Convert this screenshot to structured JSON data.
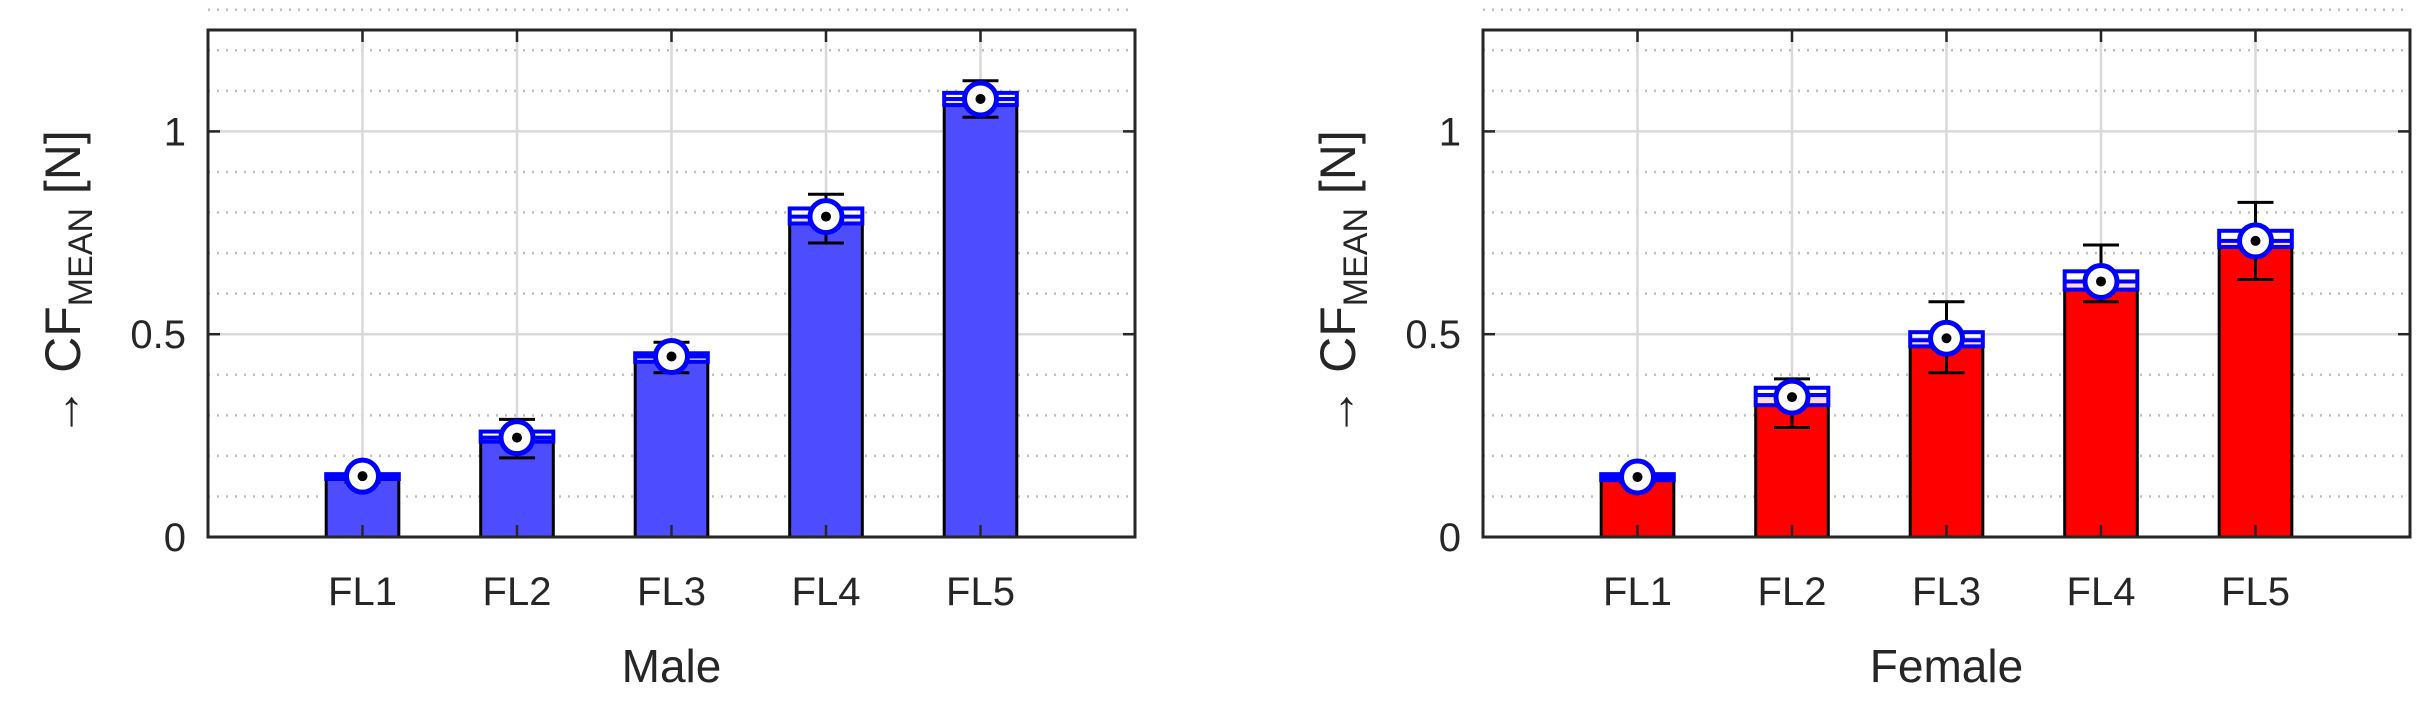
{
  "chart_data": [
    {
      "type": "bar",
      "xlabel": "Male",
      "ylabel_prefix": "→ CF",
      "ylabel_subscript": "MEAN",
      "ylabel_unit": "[N]",
      "categories": [
        "FL1",
        "FL2",
        "FL3",
        "FL4",
        "FL5"
      ],
      "values": [
        0.15,
        0.245,
        0.445,
        0.79,
        1.08
      ],
      "error_low": [
        0.135,
        0.195,
        0.405,
        0.725,
        1.035
      ],
      "error_high": [
        0.16,
        0.29,
        0.48,
        0.845,
        1.125
      ],
      "box_low": [
        0.143,
        0.235,
        0.432,
        0.773,
        1.065
      ],
      "box_high": [
        0.155,
        0.26,
        0.453,
        0.81,
        1.095
      ],
      "median": [
        0.148,
        0.245,
        0.445,
        0.79,
        1.08
      ],
      "bar_color": "#4d4dff",
      "yticks": [
        0,
        0.5,
        1
      ],
      "ytick_labels": [
        "0",
        "0.5",
        "1"
      ],
      "ylim": [
        0,
        1.25
      ],
      "grid": true,
      "minor_grid": true
    },
    {
      "type": "bar",
      "xlabel": "Female",
      "ylabel_prefix": "→ CF",
      "ylabel_subscript": "MEAN",
      "ylabel_unit": "[N]",
      "categories": [
        "FL1",
        "FL2",
        "FL3",
        "FL4",
        "FL5"
      ],
      "values": [
        0.148,
        0.345,
        0.49,
        0.63,
        0.73
      ],
      "error_low": [
        0.135,
        0.27,
        0.405,
        0.58,
        0.635
      ],
      "error_high": [
        0.155,
        0.39,
        0.58,
        0.72,
        0.825
      ],
      "box_low": [
        0.14,
        0.325,
        0.47,
        0.61,
        0.715
      ],
      "box_high": [
        0.155,
        0.368,
        0.505,
        0.655,
        0.755
      ],
      "median": [
        0.148,
        0.35,
        0.485,
        0.63,
        0.73
      ],
      "bar_color": "#ff0000",
      "yticks": [
        0,
        0.5,
        1
      ],
      "ytick_labels": [
        "0",
        "0.5",
        "1"
      ],
      "ylim": [
        0,
        1.25
      ],
      "grid": true,
      "minor_grid": true
    }
  ],
  "colors": {
    "box_edge": "#0000ff",
    "marker_fill": "#ffffff",
    "marker_dot": "#000000",
    "whisker": "#000000",
    "axis": "#262626",
    "grid_major": "#d9d9d9",
    "grid_minor": "#bfbfbf"
  }
}
